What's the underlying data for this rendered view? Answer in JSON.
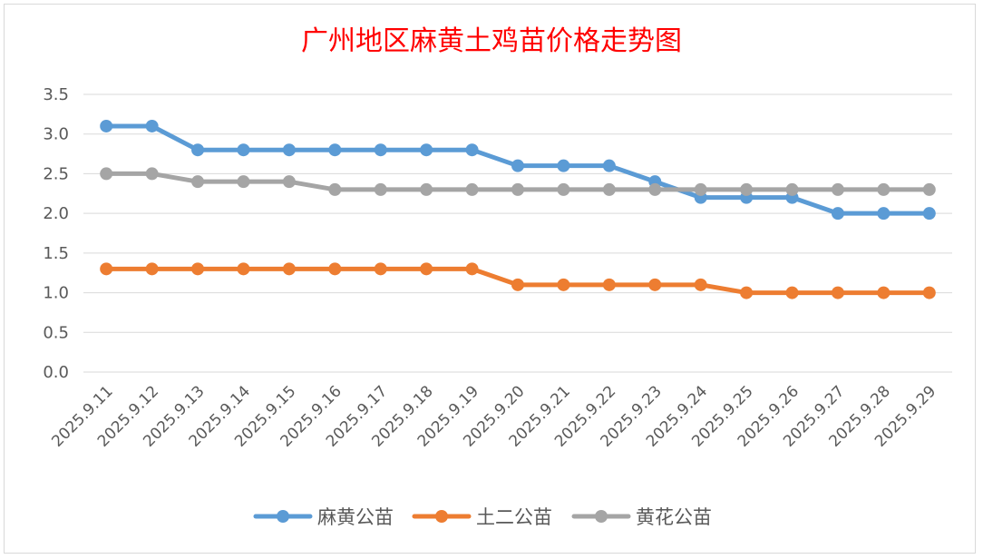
{
  "chart_data": {
    "type": "line",
    "title": "广州地区麻黄土鸡苗价格走势图",
    "xlabel": "",
    "ylabel": "",
    "x": [
      "2025.9.11",
      "2025.9.12",
      "2025.9.13",
      "2025.9.14",
      "2025.9.15",
      "2025.9.16",
      "2025.9.17",
      "2025.9.18",
      "2025.9.19",
      "2025.9.20",
      "2025.9.21",
      "2025.9.22",
      "2025.9.23",
      "2025.9.24",
      "2025.9.25",
      "2025.9.26",
      "2025.9.27",
      "2025.9.28",
      "2025.9.29"
    ],
    "ylim": [
      0,
      3.5
    ],
    "yticks": [
      "0.0",
      "0.5",
      "1.0",
      "1.5",
      "2.0",
      "2.5",
      "3.0",
      "3.5"
    ],
    "grid": true,
    "legend_position": "bottom",
    "series": [
      {
        "name": "麻黄公苗",
        "color": "#5b9bd5",
        "values": [
          3.1,
          3.1,
          2.8,
          2.8,
          2.8,
          2.8,
          2.8,
          2.8,
          2.8,
          2.6,
          2.6,
          2.6,
          2.4,
          2.2,
          2.2,
          2.2,
          2.0,
          2.0,
          2.0
        ]
      },
      {
        "name": "土二公苗",
        "color": "#ed7d31",
        "values": [
          1.3,
          1.3,
          1.3,
          1.3,
          1.3,
          1.3,
          1.3,
          1.3,
          1.3,
          1.1,
          1.1,
          1.1,
          1.1,
          1.1,
          1.0,
          1.0,
          1.0,
          1.0,
          1.0
        ]
      },
      {
        "name": "黄花公苗",
        "color": "#a5a5a5",
        "values": [
          2.5,
          2.5,
          2.4,
          2.4,
          2.4,
          2.3,
          2.3,
          2.3,
          2.3,
          2.3,
          2.3,
          2.3,
          2.3,
          2.3,
          2.3,
          2.3,
          2.3,
          2.3,
          2.3
        ]
      }
    ]
  }
}
